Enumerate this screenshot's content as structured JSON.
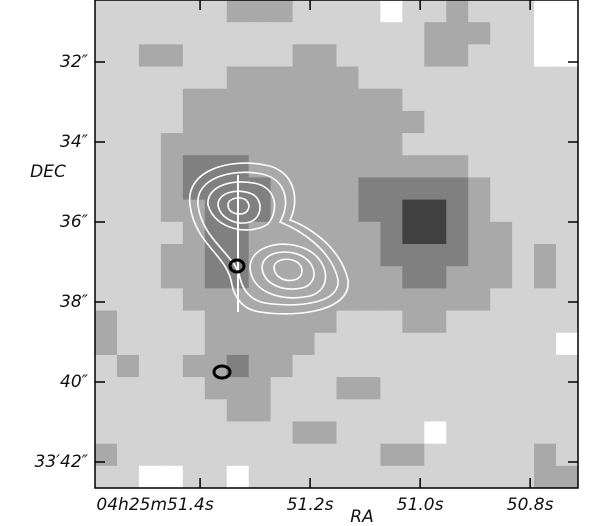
{
  "chart_data": {
    "type": "image",
    "xlabel": "RA",
    "ylabel": "DEC",
    "xlim": [
      51.591,
      50.713
    ],
    "ylim": [
      30.45,
      42.65
    ],
    "xticks": [
      {
        "value": 51.4,
        "label": "04h25m51.4s"
      },
      {
        "value": 51.2,
        "label": "51.2s"
      },
      {
        "value": 51.0,
        "label": "51.0s"
      },
      {
        "value": 50.8,
        "label": "50.8s"
      }
    ],
    "yticks": [
      {
        "value": 32,
        "label": "32″"
      },
      {
        "value": 34,
        "label": "34″"
      },
      {
        "value": 36,
        "label": "36″"
      },
      {
        "value": 38,
        "label": "38″"
      },
      {
        "value": 40,
        "label": "40″"
      },
      {
        "value": 42,
        "label": "33′42″"
      }
    ],
    "colors": [
      "#ffffff",
      "#d3d3d3",
      "#a9a9a9",
      "#808080",
      "#404040"
    ],
    "z": [
      [
        1,
        1,
        1,
        1,
        1,
        1,
        2,
        2,
        2,
        1,
        1,
        1,
        1,
        0,
        1,
        1,
        2,
        1,
        1,
        1,
        0,
        0
      ],
      [
        1,
        1,
        1,
        1,
        1,
        1,
        1,
        1,
        1,
        1,
        1,
        1,
        1,
        1,
        1,
        2,
        2,
        2,
        1,
        1,
        0,
        0
      ],
      [
        1,
        1,
        2,
        2,
        1,
        1,
        1,
        1,
        1,
        2,
        2,
        1,
        1,
        1,
        1,
        2,
        2,
        1,
        1,
        1,
        0,
        0
      ],
      [
        1,
        1,
        1,
        1,
        1,
        1,
        2,
        2,
        2,
        2,
        2,
        2,
        1,
        1,
        1,
        1,
        1,
        1,
        1,
        1,
        1,
        1
      ],
      [
        1,
        1,
        1,
        1,
        2,
        2,
        2,
        2,
        2,
        2,
        2,
        2,
        2,
        2,
        1,
        1,
        1,
        1,
        1,
        1,
        1,
        1
      ],
      [
        1,
        1,
        1,
        1,
        2,
        2,
        2,
        2,
        2,
        2,
        2,
        2,
        2,
        2,
        2,
        1,
        1,
        1,
        1,
        1,
        1,
        1
      ],
      [
        1,
        1,
        1,
        2,
        2,
        2,
        2,
        2,
        2,
        2,
        2,
        2,
        2,
        2,
        1,
        1,
        1,
        1,
        1,
        1,
        1,
        1
      ],
      [
        1,
        1,
        1,
        2,
        3,
        3,
        3,
        2,
        2,
        2,
        2,
        2,
        2,
        2,
        2,
        2,
        2,
        1,
        1,
        1,
        1,
        1
      ],
      [
        1,
        1,
        1,
        2,
        3,
        3,
        3,
        3,
        2,
        2,
        2,
        2,
        3,
        3,
        3,
        3,
        3,
        2,
        1,
        1,
        1,
        1
      ],
      [
        1,
        1,
        1,
        2,
        2,
        3,
        3,
        3,
        2,
        2,
        2,
        2,
        3,
        3,
        4,
        4,
        3,
        2,
        1,
        1,
        1,
        1
      ],
      [
        1,
        1,
        1,
        1,
        2,
        3,
        3,
        2,
        2,
        2,
        2,
        2,
        2,
        3,
        4,
        4,
        3,
        2,
        2,
        1,
        1,
        1
      ],
      [
        1,
        1,
        1,
        2,
        2,
        3,
        3,
        2,
        2,
        2,
        2,
        2,
        2,
        3,
        3,
        3,
        3,
        2,
        2,
        1,
        2,
        1
      ],
      [
        1,
        1,
        1,
        2,
        2,
        3,
        3,
        2,
        2,
        2,
        2,
        2,
        2,
        2,
        3,
        3,
        2,
        2,
        2,
        1,
        2,
        1
      ],
      [
        1,
        1,
        1,
        1,
        2,
        2,
        2,
        2,
        2,
        2,
        2,
        2,
        2,
        2,
        2,
        2,
        2,
        2,
        1,
        1,
        1,
        1
      ],
      [
        2,
        1,
        1,
        1,
        1,
        2,
        2,
        2,
        2,
        2,
        2,
        1,
        1,
        1,
        2,
        2,
        1,
        1,
        1,
        1,
        1,
        1
      ],
      [
        2,
        1,
        1,
        1,
        1,
        2,
        2,
        2,
        2,
        2,
        1,
        1,
        1,
        1,
        1,
        1,
        1,
        1,
        1,
        1,
        1,
        0
      ],
      [
        1,
        2,
        1,
        1,
        2,
        2,
        3,
        2,
        2,
        1,
        1,
        1,
        1,
        1,
        1,
        1,
        1,
        1,
        1,
        1,
        1,
        1
      ],
      [
        1,
        1,
        1,
        1,
        1,
        2,
        2,
        2,
        1,
        1,
        1,
        2,
        2,
        1,
        1,
        1,
        1,
        1,
        1,
        1,
        1,
        1
      ],
      [
        1,
        1,
        1,
        1,
        1,
        1,
        2,
        2,
        1,
        1,
        1,
        1,
        1,
        1,
        1,
        1,
        1,
        1,
        1,
        1,
        1,
        1
      ],
      [
        1,
        1,
        1,
        1,
        1,
        1,
        1,
        1,
        1,
        2,
        2,
        1,
        1,
        1,
        1,
        0,
        1,
        1,
        1,
        1,
        1,
        1
      ],
      [
        2,
        1,
        1,
        1,
        1,
        1,
        1,
        1,
        1,
        1,
        1,
        1,
        1,
        2,
        2,
        1,
        1,
        1,
        1,
        1,
        2,
        1
      ],
      [
        1,
        1,
        0,
        0,
        1,
        1,
        0,
        1,
        1,
        1,
        1,
        1,
        1,
        1,
        1,
        1,
        1,
        1,
        1,
        1,
        2,
        2
      ]
    ]
  }
}
